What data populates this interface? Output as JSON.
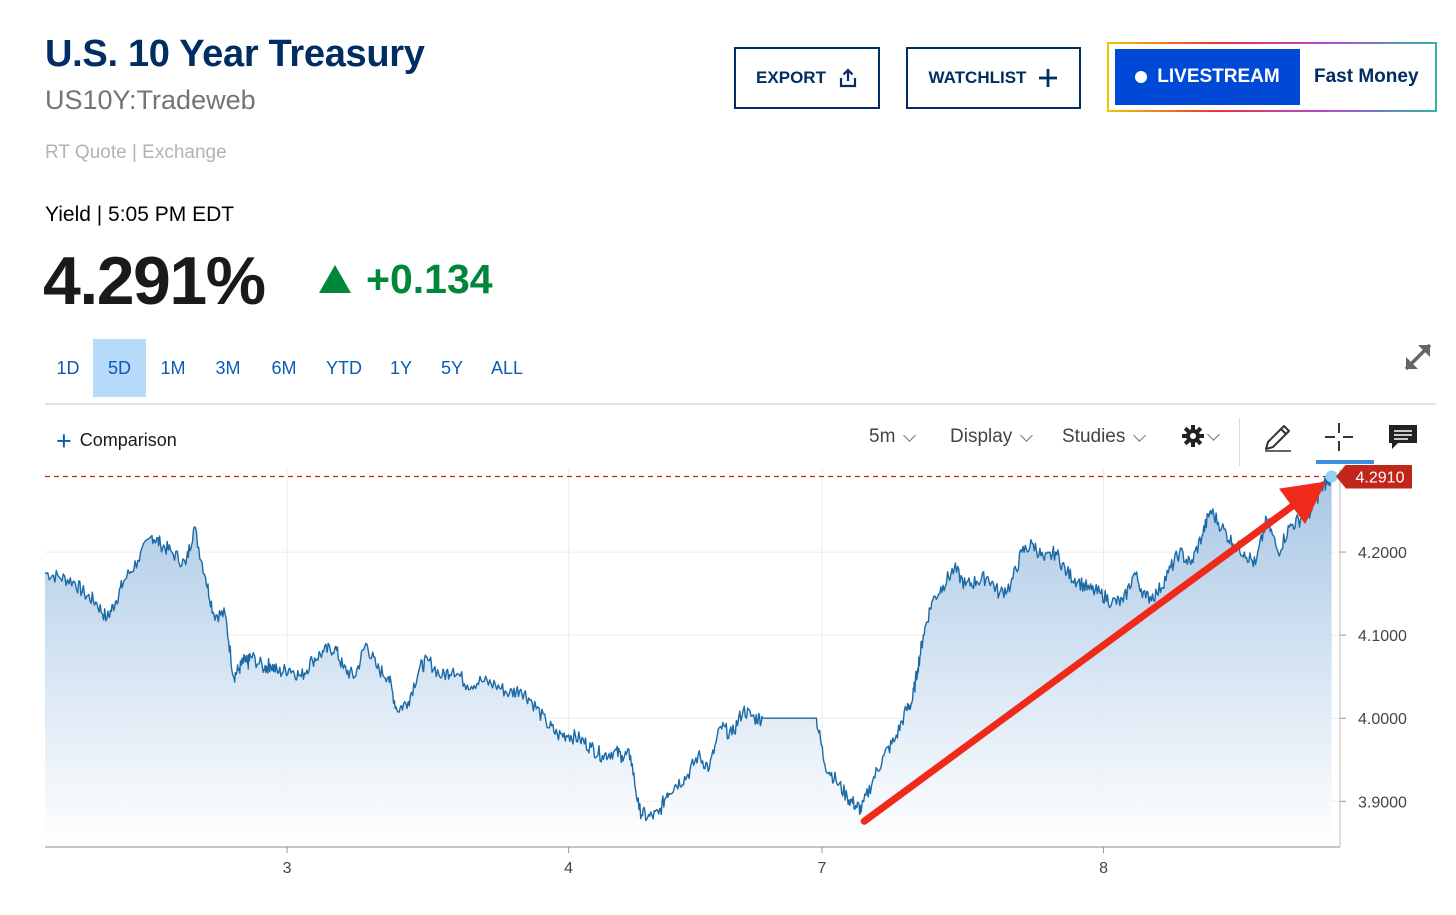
{
  "header": {
    "title": "U.S. 10 Year Treasury",
    "symbol": "US10Y:Tradeweb",
    "quote_source": "RT Quote | Exchange",
    "yield_label": "Yield | 5:05 PM EDT",
    "price": "4.291%",
    "change": "+0.134"
  },
  "buttons": {
    "export": "EXPORT",
    "watchlist": "WATCHLIST",
    "livestream": "LIVESTREAM",
    "live_show": "Fast Money"
  },
  "ranges": [
    {
      "label": "1D",
      "active": false
    },
    {
      "label": "5D",
      "active": true
    },
    {
      "label": "1M",
      "active": false
    },
    {
      "label": "3M",
      "active": false
    },
    {
      "label": "6M",
      "active": false
    },
    {
      "label": "YTD",
      "active": false
    },
    {
      "label": "1Y",
      "active": false
    },
    {
      "label": "5Y",
      "active": false
    },
    {
      "label": "ALL",
      "active": false
    }
  ],
  "toolbar": {
    "comparison": "Comparison",
    "interval": "5m",
    "display": "Display",
    "studies": "Studies"
  },
  "icons": {
    "export": "share-icon",
    "watchlist": "plus-icon",
    "expand": "expand-icon",
    "settings": "gear-icon",
    "draw": "pencil-icon",
    "crosshair": "crosshair-icon",
    "comment": "comment-icon"
  },
  "colors": {
    "title": "#002d62",
    "positive": "#00873c",
    "line": "#1a6aa6",
    "price_marker": "#c0261a",
    "arrow": "#f02a1a",
    "live_button": "#0049d6"
  },
  "chart_data": {
    "type": "area",
    "x_ticks": [
      "3",
      "4",
      "7",
      "8"
    ],
    "y_ticks": [
      "3.9000",
      "4.0000",
      "4.1000",
      "4.2000"
    ],
    "ylim": [
      3.845,
      4.3
    ],
    "xlim": [
      0,
      4.6
    ],
    "grid": true,
    "current_value": 4.291,
    "current_label": "4.2910",
    "series": [
      {
        "x": [
          0.0,
          0.05,
          0.1,
          0.14,
          0.18,
          0.22,
          0.25,
          0.28,
          0.33,
          0.38,
          0.41,
          0.45,
          0.5,
          0.53,
          0.57,
          0.6,
          0.64,
          0.67,
          0.69,
          0.71,
          0.72,
          0.73,
          0.78,
          0.8,
          0.83,
          0.87,
          0.91,
          0.95,
          0.99,
          1.03,
          1.06,
          1.1,
          1.14,
          1.18,
          1.22,
          1.25,
          1.29,
          1.33,
          1.36,
          1.41,
          1.45,
          1.5,
          1.55,
          1.6,
          1.65,
          1.69,
          1.73,
          1.78,
          1.82,
          1.86,
          1.9,
          1.94,
          1.98,
          2.02,
          2.05,
          2.08,
          2.11,
          2.14,
          2.18,
          2.21,
          2.24,
          2.28,
          2.32,
          2.36,
          2.4,
          2.44,
          2.48,
          2.52,
          2.55,
          2.59,
          2.63,
          2.67,
          2.71,
          2.74,
          2.77,
          2.81,
          2.85,
          2.88,
          2.9,
          2.94,
          2.98,
          3.02,
          3.06,
          3.08,
          3.1,
          3.12,
          3.15,
          3.19,
          3.23,
          3.27,
          3.31,
          3.35,
          3.39,
          3.43,
          3.47,
          3.51,
          3.55,
          3.59,
          3.63,
          3.67,
          3.71,
          3.75,
          3.79,
          3.83,
          3.87,
          3.91,
          3.95,
          3.99,
          4.03,
          4.07,
          4.11,
          4.14,
          4.18,
          4.22,
          4.26,
          4.3,
          4.34,
          4.38,
          4.42,
          4.46,
          4.5,
          4.53,
          4.55,
          4.57
        ],
        "values": [
          4.175,
          4.17,
          4.165,
          4.15,
          4.14,
          4.12,
          4.14,
          4.165,
          4.19,
          4.22,
          4.21,
          4.2,
          4.185,
          4.23,
          4.17,
          4.125,
          4.125,
          4.05,
          4.06,
          4.07,
          4.065,
          4.075,
          4.06,
          4.065,
          4.055,
          4.06,
          4.05,
          4.07,
          4.08,
          4.085,
          4.06,
          4.05,
          4.09,
          4.06,
          4.05,
          4.01,
          4.02,
          4.06,
          4.07,
          4.05,
          4.06,
          4.04,
          4.045,
          4.04,
          4.03,
          4.035,
          4.02,
          3.995,
          3.98,
          3.98,
          3.975,
          3.965,
          3.955,
          3.96,
          3.955,
          3.955,
          3.89,
          3.88,
          3.885,
          3.91,
          3.92,
          3.93,
          3.955,
          3.94,
          3.99,
          3.98,
          4.01,
          4.0,
          4.0,
          4.0,
          4.0,
          4.0,
          4.0,
          4.0,
          3.945,
          3.925,
          3.905,
          3.895,
          3.89,
          3.925,
          3.955,
          3.975,
          4.01,
          4.02,
          4.06,
          4.1,
          4.14,
          4.16,
          4.18,
          4.16,
          4.165,
          4.17,
          4.15,
          4.16,
          4.2,
          4.21,
          4.19,
          4.2,
          4.175,
          4.165,
          4.155,
          4.15,
          4.14,
          4.14,
          4.175,
          4.145,
          4.15,
          4.175,
          4.2,
          4.185,
          4.22,
          4.25,
          4.23,
          4.21,
          4.2,
          4.185,
          4.24,
          4.2,
          4.23,
          4.24,
          4.25,
          4.275,
          4.283,
          4.291
        ]
      }
    ],
    "annotation": {
      "type": "arrow",
      "from": [
        2.91,
        3.876
      ],
      "to": [
        4.55,
        4.285
      ]
    }
  }
}
